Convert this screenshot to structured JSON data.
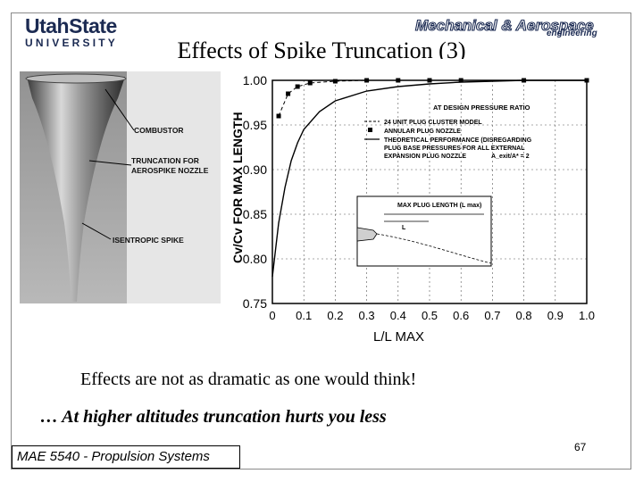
{
  "logos": {
    "usu_line1": "UtahState",
    "usu_line2": "UNIVERSITY",
    "mae_text": "Mechanical & Aerospace",
    "mae_sub": "engineering"
  },
  "slide": {
    "title": "Effects of Spike Truncation (3)",
    "caption": "Effects are not as dramatic as one would think!",
    "subcaption": "… At higher altitudes truncation hurts you less",
    "footer": "MAE 5540 - Propulsion Systems",
    "page": "67"
  },
  "photo_labels": {
    "combustor": "COMBUSTOR",
    "truncation_1": "TRUNCATION FOR",
    "truncation_2": "AEROSPIKE NOZZLE",
    "spike": "ISENTROPIC SPIKE"
  },
  "chart_data": {
    "type": "line",
    "xlabel": "L/L MAX",
    "ylabel": "Cv/Cv FOR MAX LENGTH",
    "x_ticks": [
      "0",
      "0.1",
      "0.2",
      "0.3",
      "0.4",
      "0.5",
      "0.6",
      "0.7",
      "0.8",
      "0.9",
      "1.0"
    ],
    "y_ticks": [
      "0.75",
      "0.80",
      "0.85",
      "0.90",
      "0.95",
      "1.00"
    ],
    "xlim": [
      0,
      1.0
    ],
    "ylim": [
      0.75,
      1.0
    ],
    "annotations": {
      "top_label": "AT DESIGN PRESSURE RATIO",
      "legend_1": "24 UNIT PLUG CLUSTER MODEL",
      "legend_2": "ANNULAR PLUG NOZZLE",
      "legend_3a": "THEORETICAL PERFORMANCE (DISREGARDING",
      "legend_3b": "PLUG BASE PRESSURES FOR ALL EXTERNAL",
      "legend_3c": "EXPANSION PLUG NOZZLE",
      "legend_3d": "A_exit/A* = 2",
      "inset_label": "MAX PLUG LENGTH (L max)",
      "inset_l": "L"
    },
    "series": [
      {
        "name": "THEORETICAL PERFORMANCE",
        "x": [
          0.0,
          0.02,
          0.04,
          0.06,
          0.08,
          0.1,
          0.15,
          0.2,
          0.3,
          0.4,
          0.5,
          0.6,
          0.7,
          0.8,
          0.9,
          1.0
        ],
        "y": [
          0.78,
          0.84,
          0.88,
          0.91,
          0.93,
          0.945,
          0.965,
          0.977,
          0.988,
          0.993,
          0.996,
          0.998,
          0.999,
          1.0,
          1.0,
          1.0
        ]
      },
      {
        "name": "24 UNIT PLUG CLUSTER MODEL",
        "x": [
          0.02,
          0.05,
          0.08,
          0.12,
          0.2,
          0.3,
          0.4,
          0.5,
          0.6,
          0.8,
          1.0
        ],
        "y": [
          0.96,
          0.985,
          0.993,
          0.997,
          0.999,
          1.0,
          1.0,
          1.0,
          1.0,
          1.0,
          1.0
        ]
      }
    ]
  }
}
